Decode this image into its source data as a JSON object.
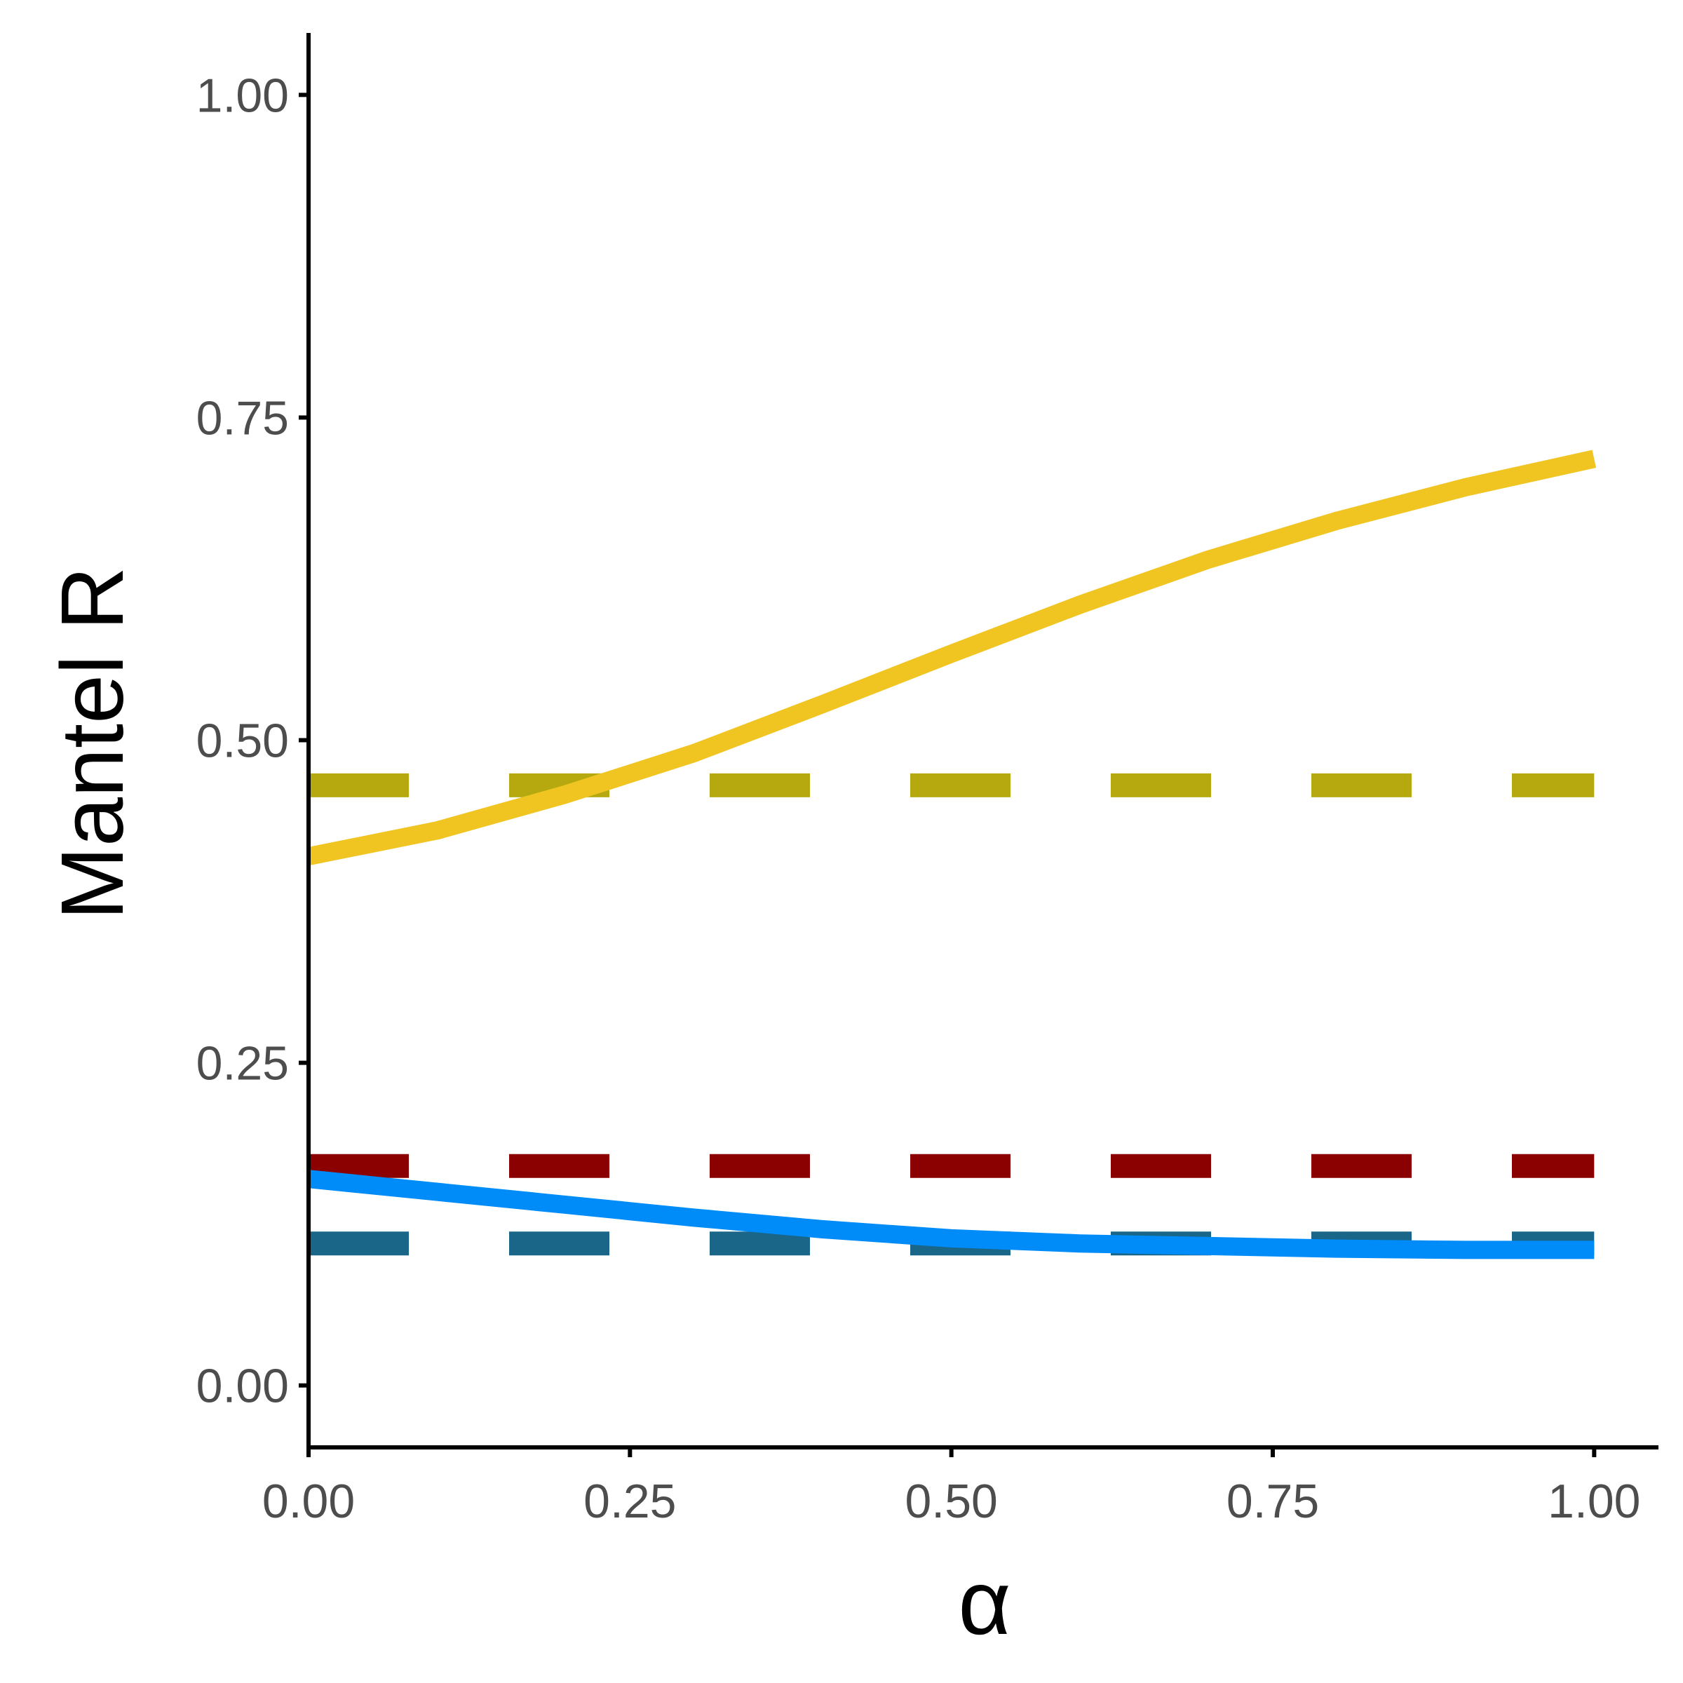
{
  "chart_data": {
    "type": "line",
    "xlabel": "α",
    "ylabel": "Mantel R",
    "xlim": [
      0,
      1.05
    ],
    "ylim": [
      -0.048,
      1.048
    ],
    "x_ticks": [
      0,
      0.25,
      0.5,
      0.75,
      1.0
    ],
    "x_tick_labels": [
      "0.00",
      "0.25",
      "0.50",
      "0.75",
      "1.00"
    ],
    "y_ticks": [
      0,
      0.25,
      0.5,
      0.75,
      1.0
    ],
    "y_tick_labels": [
      "0.00",
      "0.25",
      "0.50",
      "0.75",
      "1.00"
    ],
    "grid": false,
    "legend": "none",
    "series": [
      {
        "style": "dashed",
        "color": "#b5a90f",
        "x": [
          0,
          1
        ],
        "y": [
          0.465,
          0.465
        ]
      },
      {
        "style": "dashed",
        "color": "#8b0000",
        "x": [
          0,
          1
        ],
        "y": [
          0.17,
          0.17
        ]
      },
      {
        "style": "dashed",
        "color": "#1a6688",
        "x": [
          0,
          1
        ],
        "y": [
          0.11,
          0.11
        ]
      },
      {
        "style": "solid",
        "color": "#f0c522",
        "x": [
          0,
          0.1,
          0.2,
          0.3,
          0.4,
          0.5,
          0.6,
          0.7,
          0.8,
          0.9,
          1.0
        ],
        "y": [
          0.41,
          0.43,
          0.458,
          0.49,
          0.528,
          0.567,
          0.605,
          0.64,
          0.67,
          0.696,
          0.718
        ]
      },
      {
        "style": "solid",
        "color": "#008cf8",
        "x": [
          0,
          0.1,
          0.2,
          0.3,
          0.4,
          0.5,
          0.6,
          0.7,
          0.8,
          0.9,
          1.0
        ],
        "y": [
          0.16,
          0.15,
          0.14,
          0.13,
          0.121,
          0.114,
          0.11,
          0.108,
          0.106,
          0.105,
          0.105
        ]
      }
    ]
  }
}
